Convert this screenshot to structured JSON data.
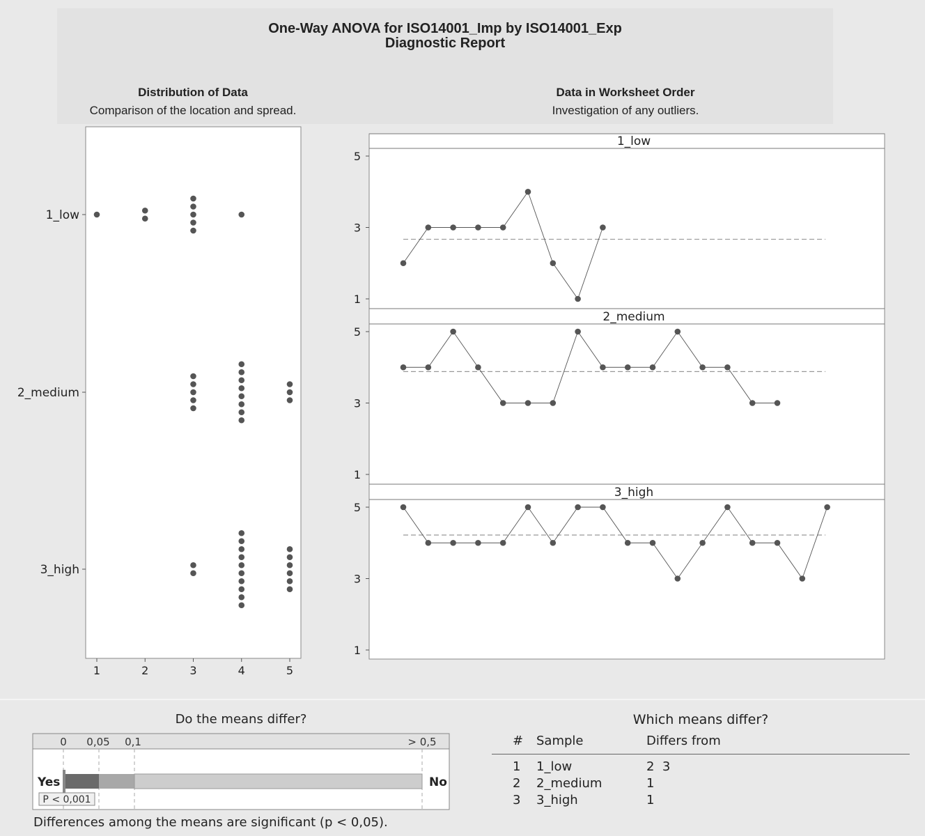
{
  "report": {
    "title": "One-Way ANOVA for ISO14001_Imp by ISO14001_Exp",
    "subtitle": "Diagnostic Report"
  },
  "distribution": {
    "title": "Distribution of Data",
    "subtitle": "Comparison of the location and spread."
  },
  "worksheet": {
    "title": "Data in Worksheet Order",
    "subtitle": "Investigation of any outliers."
  },
  "chart_data": [
    {
      "type": "scatter",
      "title": "Distribution of Data",
      "subtitle": "Comparison of the location and spread.",
      "x_ticks": [
        "1",
        "2",
        "3",
        "4",
        "5"
      ],
      "xlim": [
        0.8,
        5.2
      ],
      "groups": [
        "1_low",
        "2_medium",
        "3_high"
      ],
      "counts": [
        {
          "group": "1_low",
          "values": [
            1,
            2,
            3,
            4
          ],
          "n": [
            1,
            2,
            5,
            1
          ]
        },
        {
          "group": "2_medium",
          "values": [
            3,
            4,
            5
          ],
          "n": [
            5,
            8,
            3
          ]
        },
        {
          "group": "3_high",
          "values": [
            3,
            4,
            5
          ],
          "n": [
            2,
            10,
            6
          ]
        }
      ],
      "grid": false
    },
    {
      "type": "line",
      "title": "Data in Worksheet Order",
      "subtitle": "Investigation of any outliers.",
      "y_ticks": [
        "1",
        "3",
        "5"
      ],
      "ylim": [
        1,
        5
      ],
      "panels": [
        {
          "name": "1_low",
          "values": [
            2,
            3,
            3,
            3,
            3,
            4,
            2,
            1,
            3
          ],
          "mean": 2.67
        },
        {
          "name": "2_medium",
          "values": [
            4,
            4,
            5,
            4,
            3,
            3,
            3,
            5,
            4,
            4,
            4,
            5,
            4,
            4,
            3,
            3
          ],
          "mean": 3.88
        },
        {
          "name": "3_high",
          "values": [
            5,
            4,
            4,
            4,
            4,
            5,
            4,
            5,
            5,
            4,
            4,
            3,
            4,
            5,
            4,
            4,
            3,
            5
          ],
          "mean": 4.22
        }
      ],
      "grid": false
    }
  ],
  "means_differ": {
    "title": "Do the means differ?",
    "scale_labels": [
      "0",
      "0,05",
      "0,1",
      "> 0,5"
    ],
    "yes_label": "Yes",
    "no_label": "No",
    "p_label": "P < 0,001",
    "p_value": 0.001,
    "conclusion": "Differences among the means are significant (p < 0,05)."
  },
  "which_differ": {
    "title": "Which means differ?",
    "headers": [
      "#",
      "Sample",
      "Differs from"
    ],
    "rows": [
      {
        "num": "1",
        "sample": "1_low",
        "differs": "2  3"
      },
      {
        "num": "2",
        "sample": "2_medium",
        "differs": "1"
      },
      {
        "num": "3",
        "sample": "3_high",
        "differs": "1"
      }
    ]
  },
  "colors": {
    "point": "#555555",
    "line": "#555555",
    "mean_line": "#999999",
    "bar_dark": "#6a6a6a",
    "bar_mid": "#a8a8a8",
    "bar_light": "#cdcdcd"
  }
}
